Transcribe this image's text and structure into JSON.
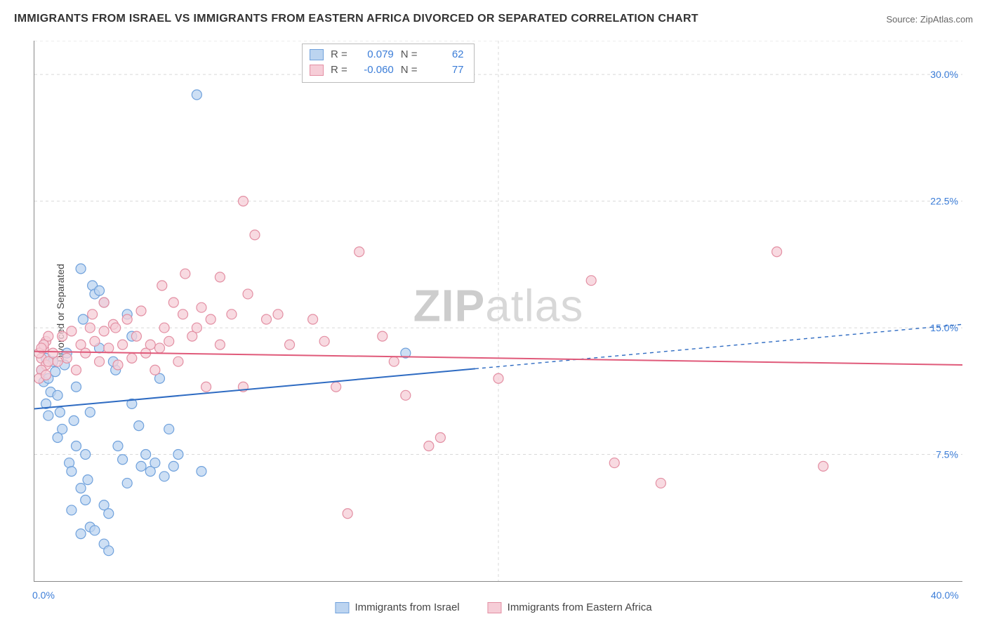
{
  "title": "IMMIGRANTS FROM ISRAEL VS IMMIGRANTS FROM EASTERN AFRICA DIVORCED OR SEPARATED CORRELATION CHART",
  "source": "Source: ZipAtlas.com",
  "watermark_a": "ZIP",
  "watermark_b": "atlas",
  "y_axis_label": "Divorced or Separated",
  "chart": {
    "type": "scatter",
    "xlim": [
      0,
      40
    ],
    "ylim": [
      0,
      32
    ],
    "x_ticks": [
      0,
      40
    ],
    "x_tick_labels": [
      "0.0%",
      "40.0%"
    ],
    "y_ticks": [
      7.5,
      15.0,
      22.5,
      30.0
    ],
    "y_tick_labels": [
      "7.5%",
      "15.0%",
      "22.5%",
      "30.0%"
    ],
    "grid_color": "#d9d9d9",
    "grid_dash": "4,4",
    "background_color": "#ffffff",
    "marker_radius": 7,
    "marker_stroke_width": 1.2,
    "trend_line_width": 2,
    "trend_dash": "5,5"
  },
  "series": [
    {
      "id": "israel",
      "label": "Immigrants from Israel",
      "fill": "#bcd4f0",
      "stroke": "#6fa1dc",
      "line_color": "#2e6bc2",
      "r_label": "R =",
      "r_value": "0.079",
      "n_label": "N =",
      "n_value": "62",
      "trend": {
        "x1": 0,
        "y1": 10.2,
        "x2": 40,
        "y2": 15.2,
        "solid_until_x": 19
      },
      "points": [
        [
          0.3,
          12.5
        ],
        [
          0.4,
          11.8
        ],
        [
          0.5,
          13.2
        ],
        [
          0.6,
          12.0
        ],
        [
          0.5,
          10.5
        ],
        [
          0.6,
          9.8
        ],
        [
          0.7,
          11.2
        ],
        [
          0.8,
          13.0
        ],
        [
          0.4,
          14.0
        ],
        [
          0.9,
          12.4
        ],
        [
          1.0,
          11.0
        ],
        [
          1.1,
          10.0
        ],
        [
          1.2,
          9.0
        ],
        [
          1.0,
          8.5
        ],
        [
          1.3,
          12.8
        ],
        [
          1.4,
          13.5
        ],
        [
          1.5,
          7.0
        ],
        [
          1.6,
          6.5
        ],
        [
          1.7,
          9.5
        ],
        [
          1.8,
          11.5
        ],
        [
          2.0,
          18.5
        ],
        [
          2.1,
          15.5
        ],
        [
          2.2,
          7.5
        ],
        [
          2.3,
          6.0
        ],
        [
          2.4,
          10.0
        ],
        [
          2.5,
          17.5
        ],
        [
          2.6,
          17.0
        ],
        [
          2.8,
          13.8
        ],
        [
          2.4,
          3.2
        ],
        [
          2.6,
          3.0
        ],
        [
          3.0,
          2.2
        ],
        [
          3.2,
          1.8
        ],
        [
          2.0,
          2.8
        ],
        [
          3.5,
          12.5
        ],
        [
          3.6,
          8.0
        ],
        [
          3.8,
          7.2
        ],
        [
          4.0,
          5.8
        ],
        [
          4.2,
          10.5
        ],
        [
          4.5,
          9.2
        ],
        [
          4.6,
          6.8
        ],
        [
          3.0,
          4.5
        ],
        [
          3.2,
          4.0
        ],
        [
          4.8,
          7.5
        ],
        [
          5.0,
          6.5
        ],
        [
          5.2,
          7.0
        ],
        [
          5.4,
          12.0
        ],
        [
          5.6,
          6.2
        ],
        [
          5.8,
          9.0
        ],
        [
          6.0,
          6.8
        ],
        [
          6.2,
          7.5
        ],
        [
          7.0,
          28.8
        ],
        [
          7.2,
          6.5
        ],
        [
          4.0,
          15.8
        ],
        [
          4.2,
          14.5
        ],
        [
          2.8,
          17.2
        ],
        [
          3.0,
          16.5
        ],
        [
          16.0,
          13.5
        ],
        [
          3.4,
          13.0
        ],
        [
          1.8,
          8.0
        ],
        [
          2.0,
          5.5
        ],
        [
          1.6,
          4.2
        ],
        [
          2.2,
          4.8
        ]
      ]
    },
    {
      "id": "eastern_africa",
      "label": "Immigrants from Eastern Africa",
      "fill": "#f6cdd7",
      "stroke": "#e38fa3",
      "line_color": "#e05a7a",
      "r_label": "R =",
      "r_value": "-0.060",
      "n_label": "N =",
      "n_value": "77",
      "trend": {
        "x1": 0,
        "y1": 13.6,
        "x2": 40,
        "y2": 12.8,
        "solid_until_x": 40
      },
      "points": [
        [
          0.3,
          13.2
        ],
        [
          0.4,
          13.8
        ],
        [
          0.5,
          12.8
        ],
        [
          0.6,
          13.0
        ],
        [
          0.5,
          14.2
        ],
        [
          0.8,
          13.5
        ],
        [
          1.0,
          13.0
        ],
        [
          1.2,
          14.5
        ],
        [
          1.4,
          13.2
        ],
        [
          1.6,
          14.8
        ],
        [
          1.8,
          12.5
        ],
        [
          2.0,
          14.0
        ],
        [
          2.2,
          13.5
        ],
        [
          2.4,
          15.0
        ],
        [
          2.6,
          14.2
        ],
        [
          2.8,
          13.0
        ],
        [
          3.0,
          14.8
        ],
        [
          3.2,
          13.8
        ],
        [
          3.4,
          15.2
        ],
        [
          3.6,
          12.8
        ],
        [
          3.8,
          14.0
        ],
        [
          4.0,
          15.5
        ],
        [
          4.2,
          13.2
        ],
        [
          4.4,
          14.5
        ],
        [
          4.6,
          16.0
        ],
        [
          4.8,
          13.5
        ],
        [
          5.0,
          14.0
        ],
        [
          5.2,
          12.5
        ],
        [
          5.4,
          13.8
        ],
        [
          5.6,
          15.0
        ],
        [
          5.8,
          14.2
        ],
        [
          6.0,
          16.5
        ],
        [
          6.2,
          13.0
        ],
        [
          6.4,
          15.8
        ],
        [
          6.8,
          14.5
        ],
        [
          7.0,
          15.0
        ],
        [
          7.2,
          16.2
        ],
        [
          7.4,
          11.5
        ],
        [
          7.6,
          15.5
        ],
        [
          8.0,
          14.0
        ],
        [
          8.5,
          15.8
        ],
        [
          9.0,
          22.5
        ],
        [
          9.5,
          20.5
        ],
        [
          10.0,
          15.5
        ],
        [
          10.5,
          15.8
        ],
        [
          11.0,
          14.0
        ],
        [
          9.0,
          11.5
        ],
        [
          12.0,
          15.5
        ],
        [
          12.5,
          14.2
        ],
        [
          13.0,
          11.5
        ],
        [
          14.0,
          19.5
        ],
        [
          15.0,
          14.5
        ],
        [
          15.5,
          13.0
        ],
        [
          16.0,
          11.0
        ],
        [
          17.0,
          8.0
        ],
        [
          17.5,
          8.5
        ],
        [
          13.5,
          4.0
        ],
        [
          20.0,
          12.0
        ],
        [
          24.0,
          17.8
        ],
        [
          25.0,
          7.0
        ],
        [
          27.0,
          5.8
        ],
        [
          32.0,
          19.5
        ],
        [
          34.0,
          6.8
        ],
        [
          8.0,
          18.0
        ],
        [
          9.2,
          17.0
        ],
        [
          5.5,
          17.5
        ],
        [
          6.5,
          18.2
        ],
        [
          2.5,
          15.8
        ],
        [
          3.0,
          16.5
        ],
        [
          3.5,
          15.0
        ],
        [
          0.2,
          13.5
        ],
        [
          0.3,
          12.5
        ],
        [
          0.4,
          14.0
        ],
        [
          0.2,
          12.0
        ],
        [
          0.3,
          13.8
        ],
        [
          0.5,
          12.2
        ],
        [
          0.6,
          14.5
        ]
      ]
    }
  ],
  "bottom_legend": [
    {
      "label": "Immigrants from Israel",
      "fill": "#bcd4f0",
      "stroke": "#6fa1dc"
    },
    {
      "label": "Immigrants from Eastern Africa",
      "fill": "#f6cdd7",
      "stroke": "#e38fa3"
    }
  ]
}
